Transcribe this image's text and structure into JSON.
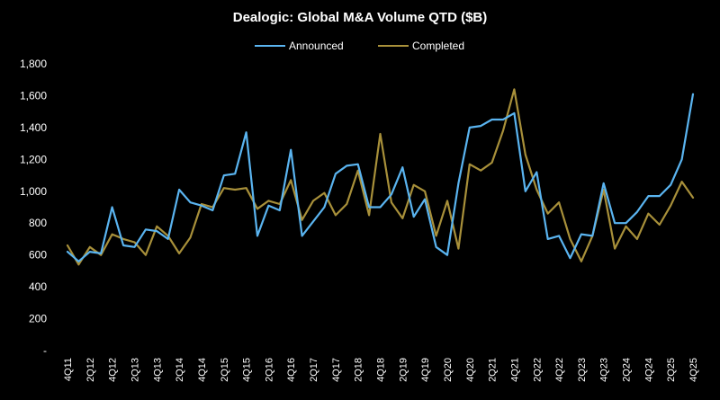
{
  "chart_data": {
    "type": "line",
    "title": "Dealogic: Global M&A Volume QTD ($B)",
    "xlabel": "",
    "ylabel": "",
    "ylim": [
      0,
      1800
    ],
    "yticks": [
      0,
      200,
      400,
      600,
      800,
      1000,
      1200,
      1400,
      1600,
      1800
    ],
    "ytick_labels": [
      "-",
      "200",
      "400",
      "600",
      "800",
      "1,000",
      "1,200",
      "1,400",
      "1,600",
      "1,800"
    ],
    "legend_position": "top-center",
    "categories": [
      "4Q11",
      "1Q12",
      "2Q12",
      "3Q12",
      "4Q12",
      "1Q13",
      "2Q13",
      "3Q13",
      "4Q13",
      "1Q14",
      "2Q14",
      "3Q14",
      "4Q14",
      "1Q15",
      "2Q15",
      "3Q15",
      "4Q15",
      "1Q16",
      "2Q16",
      "3Q16",
      "4Q16",
      "1Q17",
      "2Q17",
      "3Q17",
      "4Q17",
      "1Q18",
      "2Q18",
      "3Q18",
      "4Q18",
      "1Q19",
      "2Q19",
      "3Q19",
      "4Q19",
      "1Q20",
      "2Q20",
      "3Q20",
      "4Q20",
      "1Q21",
      "2Q21",
      "3Q21",
      "4Q21",
      "1Q22",
      "2Q22",
      "3Q22",
      "4Q22",
      "1Q23",
      "2Q23",
      "3Q23",
      "4Q23",
      "1Q24",
      "2Q24",
      "3Q24",
      "4Q24",
      "1Q25",
      "2Q25",
      "3Q25",
      "4Q25"
    ],
    "x_tick_labels": [
      "4Q11",
      "2Q12",
      "4Q12",
      "2Q13",
      "4Q13",
      "2Q14",
      "4Q14",
      "2Q15",
      "4Q15",
      "2Q16",
      "4Q16",
      "2Q17",
      "4Q17",
      "2Q18",
      "4Q18",
      "2Q19",
      "4Q19",
      "2Q20",
      "4Q20",
      "2Q21",
      "4Q21",
      "2Q22",
      "4Q22",
      "2Q23",
      "4Q23",
      "2Q24",
      "4Q24",
      "2Q25",
      "4Q25"
    ],
    "series": [
      {
        "name": "Announced",
        "color": "#5ab4f0",
        "values": [
          620,
          560,
          620,
          610,
          900,
          660,
          650,
          760,
          750,
          700,
          1010,
          930,
          910,
          880,
          1100,
          1110,
          1370,
          720,
          910,
          880,
          1260,
          720,
          810,
          900,
          1110,
          1160,
          1170,
          900,
          900,
          980,
          1150,
          840,
          950,
          650,
          600,
          1050,
          1400,
          1410,
          1450,
          1450,
          1490,
          1000,
          1120,
          700,
          720,
          580,
          730,
          720,
          1050,
          800,
          800,
          870,
          970,
          970,
          1040,
          1200,
          1610
        ]
      },
      {
        "name": "Completed",
        "color": "#a8903a",
        "values": [
          660,
          540,
          650,
          600,
          730,
          700,
          680,
          600,
          780,
          720,
          610,
          710,
          920,
          900,
          1020,
          1010,
          1020,
          890,
          940,
          920,
          1070,
          820,
          940,
          990,
          850,
          920,
          1130,
          850,
          1360,
          930,
          830,
          1040,
          1000,
          720,
          940,
          640,
          1170,
          1130,
          1180,
          1380,
          1640,
          1230,
          1010,
          860,
          930,
          700,
          560,
          720,
          1010,
          640,
          780,
          700,
          860,
          790,
          910,
          1060,
          960
        ]
      }
    ]
  }
}
